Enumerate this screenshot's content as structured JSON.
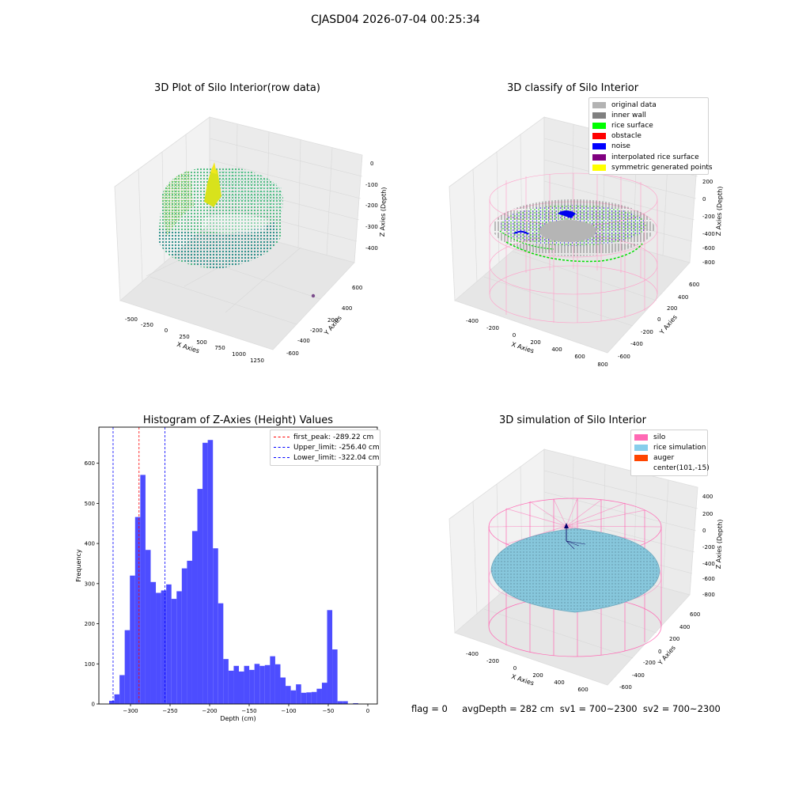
{
  "suptitle": "CJASD04 2026-07-04 00:25:34",
  "panels": {
    "raw": {
      "title": "3D Plot of Silo Interior(row data)",
      "xlabel": "X Axies",
      "ylabel": "Y Axies",
      "zlabel": "Z Axies (Depth)",
      "xticks": [
        "-500",
        "-250",
        "0",
        "250",
        "500",
        "750",
        "1000",
        "1250"
      ],
      "yticks": [
        "600",
        "400",
        "200",
        "0",
        "-200",
        "-400",
        "-600"
      ],
      "zticks": [
        "0",
        "-100",
        "-200",
        "-300",
        "-400"
      ]
    },
    "classify": {
      "title": "3D classify of Silo Interior",
      "xlabel": "X Axies",
      "ylabel": "Y Axies",
      "zlabel": "Z Axies (Depth)",
      "xticks": [
        "-400",
        "-200",
        "0",
        "200",
        "400",
        "600",
        "800"
      ],
      "yticks": [
        "600",
        "400",
        "200",
        "0",
        "-200",
        "-400",
        "-600"
      ],
      "zticks": [
        "200",
        "0",
        "-200",
        "-400",
        "-600",
        "-800"
      ],
      "legend": [
        {
          "label": "original data",
          "color": "#b3b3b3"
        },
        {
          "label": "inner wall",
          "color": "#808080"
        },
        {
          "label": "rice surface",
          "color": "#00ff00"
        },
        {
          "label": "obstacle",
          "color": "#ff0000"
        },
        {
          "label": "noise",
          "color": "#0000ff"
        },
        {
          "label": "interpolated rice surface",
          "color": "#800080"
        },
        {
          "label": "symmetric generated points",
          "color": "#ffff00"
        }
      ]
    },
    "histogram": {
      "title": "Histogram of Z-Axies (Height) Values",
      "xlabel": "Depth (cm)",
      "ylabel": "Frequency",
      "legend": [
        {
          "label": "first_peak: -289.22 cm",
          "color": "#ff0000"
        },
        {
          "label": "Upper_limit: -256.40 cm",
          "color": "#0000ff"
        },
        {
          "label": "Lower_limit: -322.04 cm",
          "color": "#0000ff"
        }
      ]
    },
    "simulation": {
      "title": "3D simulation of Silo Interior",
      "xlabel": "X Axies",
      "ylabel": "Y Axies",
      "zlabel": "Z Axies (Depth)",
      "xticks": [
        "-400",
        "-200",
        "0",
        "200",
        "400",
        "600"
      ],
      "yticks": [
        "600",
        "400",
        "200",
        "0",
        "-200",
        "-400",
        "-600"
      ],
      "zticks": [
        "400",
        "200",
        "0",
        "-200",
        "-400",
        "-600",
        "-800"
      ],
      "legend": [
        {
          "label": "silo",
          "color": "#ff69b4"
        },
        {
          "label": "rice simulation",
          "color": "#87ceeb"
        },
        {
          "label": "auger",
          "color": "#ff4500"
        },
        {
          "label": "center(101,-15)",
          "color": ""
        }
      ]
    }
  },
  "footer": "flag = 0     avgDepth = 282 cm  sv1 = 700~2300  sv2 = 700~2300",
  "chart_data": {
    "type": "bar",
    "title": "Histogram of Z-Axies (Height) Values",
    "xlabel": "Depth (cm)",
    "ylabel": "Frequency",
    "bar_color": "#4d4dff",
    "xlim": [
      -340,
      12
    ],
    "ylim": [
      0,
      690
    ],
    "xticks": [
      -300,
      -250,
      -200,
      -150,
      -100,
      -50,
      0
    ],
    "yticks": [
      0,
      100,
      200,
      300,
      400,
      500,
      600
    ],
    "bin_start": -327,
    "bin_width": 6.56,
    "values": [
      8,
      24,
      72,
      184,
      320,
      466,
      571,
      384,
      304,
      277,
      283,
      298,
      262,
      281,
      338,
      357,
      431,
      536,
      651,
      658,
      388,
      251,
      112,
      83,
      95,
      81,
      95,
      85,
      100,
      95,
      97,
      119,
      99,
      66,
      45,
      34,
      49,
      28,
      29,
      30,
      38,
      53,
      234,
      136,
      7,
      7,
      0,
      2,
      0
    ],
    "vlines": [
      {
        "x": -289.22,
        "label": "first_peak: -289.22 cm",
        "color": "#ff0000"
      },
      {
        "x": -256.4,
        "label": "Upper_limit: -256.40 cm",
        "color": "#0000ff"
      },
      {
        "x": -322.04,
        "label": "Lower_limit: -322.04 cm",
        "color": "#0000ff"
      }
    ]
  }
}
